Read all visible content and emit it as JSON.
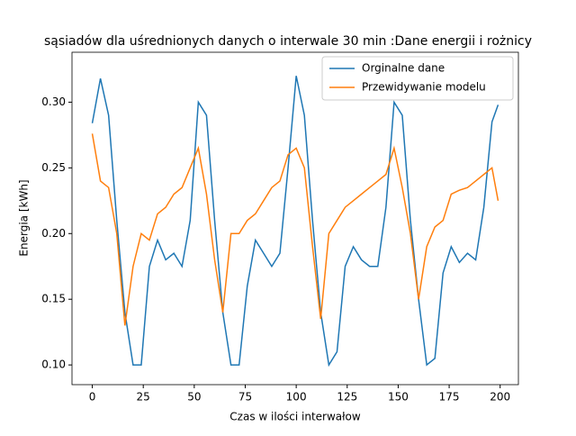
{
  "chart_data": {
    "type": "line",
    "title": "sąsiadów dla uśrednionych danych o interwale 30 min :Dane energii i rożnicy",
    "xlabel": "Czas w ilości interwałow",
    "ylabel": "Energia [kWh]",
    "x": [
      0,
      4,
      8,
      12,
      16,
      20,
      24,
      28,
      32,
      36,
      40,
      44,
      48,
      52,
      56,
      60,
      64,
      68,
      72,
      76,
      80,
      84,
      88,
      92,
      96,
      100,
      104,
      108,
      112,
      116,
      120,
      124,
      128,
      132,
      136,
      140,
      144,
      148,
      152,
      156,
      160,
      164,
      168,
      172,
      176,
      180,
      184,
      188,
      192,
      196,
      199
    ],
    "series": [
      {
        "name": "Orginalne dane",
        "color": "#1f77b4",
        "values": [
          0.284,
          0.318,
          0.29,
          0.21,
          0.14,
          0.1,
          0.1,
          0.175,
          0.195,
          0.18,
          0.185,
          0.175,
          0.21,
          0.3,
          0.29,
          0.21,
          0.14,
          0.1,
          0.1,
          0.16,
          0.195,
          0.185,
          0.175,
          0.185,
          0.25,
          0.32,
          0.29,
          0.21,
          0.14,
          0.1,
          0.11,
          0.175,
          0.19,
          0.18,
          0.175,
          0.175,
          0.22,
          0.3,
          0.29,
          0.21,
          0.15,
          0.1,
          0.105,
          0.17,
          0.19,
          0.178,
          0.185,
          0.18,
          0.22,
          0.285,
          0.298
        ]
      },
      {
        "name": "Przewidywanie modelu",
        "color": "#ff7f0e",
        "values": [
          0.276,
          0.24,
          0.235,
          0.2,
          0.13,
          0.175,
          0.2,
          0.195,
          0.215,
          0.22,
          0.23,
          0.235,
          0.25,
          0.265,
          0.23,
          0.18,
          0.14,
          0.2,
          0.2,
          0.21,
          0.215,
          0.225,
          0.235,
          0.24,
          0.26,
          0.265,
          0.25,
          0.19,
          0.135,
          0.2,
          0.21,
          0.22,
          0.225,
          0.23,
          0.235,
          0.24,
          0.245,
          0.265,
          0.235,
          0.2,
          0.15,
          0.19,
          0.205,
          0.21,
          0.23,
          0.233,
          0.235,
          0.24,
          0.245,
          0.25,
          0.225
        ]
      }
    ],
    "xlim": [
      -9.95,
      208.95
    ],
    "xticks": [
      0,
      25,
      50,
      75,
      100,
      125,
      150,
      175,
      200
    ],
    "ylim": [
      0.085,
      0.338
    ],
    "yticks": [
      {
        "value": 0.1,
        "label": "0.10"
      },
      {
        "value": 0.15,
        "label": "0.15"
      },
      {
        "value": 0.2,
        "label": "0.20"
      },
      {
        "value": 0.25,
        "label": "0.25"
      },
      {
        "value": 0.3,
        "label": "0.30"
      }
    ],
    "legend": "upper right"
  }
}
